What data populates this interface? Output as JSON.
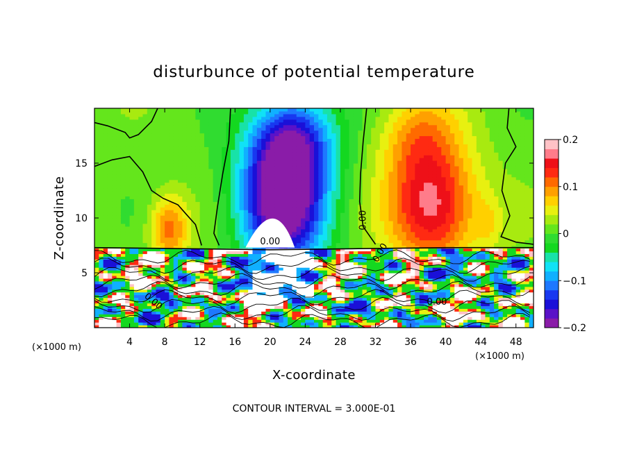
{
  "chart_data": {
    "type": "heatmap",
    "title": "disturbunce of potential temperature",
    "xlabel": "X-coordinate",
    "ylabel": "Z-coordinate",
    "x_unit_left": "(×1000 m)",
    "x_unit_right": "(×1000 m)",
    "xlim": [
      0,
      50
    ],
    "ylim": [
      0,
      20
    ],
    "x_ticks": [
      "4",
      "8",
      "12",
      "16",
      "20",
      "24",
      "28",
      "32",
      "36",
      "40",
      "44",
      "48"
    ],
    "x_tick_values": [
      4,
      8,
      12,
      16,
      20,
      24,
      28,
      32,
      36,
      40,
      44,
      48
    ],
    "y_ticks": [
      "5",
      "10",
      "15"
    ],
    "y_tick_values": [
      5,
      10,
      15
    ],
    "colorbar": {
      "range": [
        -0.2,
        0.2
      ],
      "tick_labels": [
        "0.2",
        "0.1",
        "0",
        "−0.1",
        "−0.2"
      ],
      "tick_values": [
        0.2,
        0.1,
        0,
        -0.1,
        -0.2
      ],
      "colors": [
        "#8a1ca8",
        "#5a12c8",
        "#1a10d8",
        "#1838f0",
        "#1e78ff",
        "#10b0ff",
        "#10e2f6",
        "#18e2a8",
        "#14d820",
        "#30dc30",
        "#64e61c",
        "#a8ea10",
        "#e8f010",
        "#ffd000",
        "#ffa000",
        "#ff6a00",
        "#ff2a12",
        "#ee1018",
        "#ff7c8a",
        "#ffc2c6"
      ]
    },
    "contour_labels": [
      "0.00",
      "0.00",
      "0.00",
      "0.00",
      "0.00"
    ],
    "footer": "CONTOUR INTERVAL = 3.000E-01",
    "features": [
      {
        "kind": "cold",
        "x": 21.5,
        "z": 12.0,
        "sx": 5.0,
        "sz": 6.5,
        "amp": -0.24
      },
      {
        "kind": "cold",
        "x": 23.0,
        "z": 17.5,
        "sx": 4.5,
        "sz": 4.0,
        "amp": -0.1
      },
      {
        "kind": "warm",
        "x": 38.5,
        "z": 11.0,
        "sx": 5.0,
        "sz": 5.5,
        "amp": 0.16
      },
      {
        "kind": "warm",
        "x": 37.0,
        "z": 17.5,
        "sx": 4.5,
        "sz": 4.0,
        "amp": 0.07
      },
      {
        "kind": "warm",
        "x": 8.5,
        "z": 9.0,
        "sx": 2.2,
        "sz": 3.0,
        "amp": 0.1
      },
      {
        "kind": "warm",
        "x": 45.0,
        "z": 9.5,
        "sx": 1.5,
        "sz": 2.5,
        "amp": 0.03
      }
    ],
    "boundary_z": 7.3,
    "grid": false
  }
}
